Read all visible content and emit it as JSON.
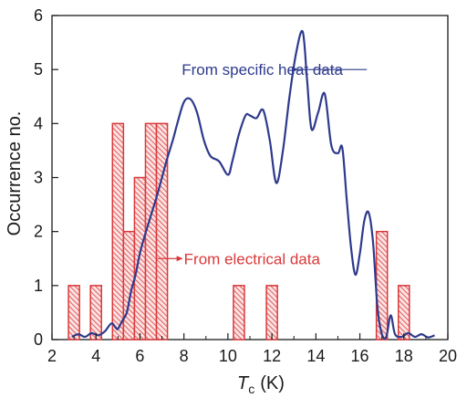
{
  "chart_data": {
    "type": "bar",
    "xlabel": {
      "symbol": "T",
      "subscript": "c",
      "unit": "(K)"
    },
    "ylabel": "Occurrence no.",
    "xlim": [
      2,
      20
    ],
    "ylim": [
      0,
      6
    ],
    "xticks": [
      2,
      4,
      6,
      8,
      10,
      12,
      14,
      16,
      18,
      20
    ],
    "yticks": [
      0,
      1,
      2,
      3,
      4,
      5,
      6
    ],
    "grid": false,
    "bars": {
      "name": "From electrical data",
      "bin_width": 0.5,
      "color": "#d9383a",
      "x": [
        3.0,
        4.0,
        5.0,
        5.5,
        6.0,
        6.5,
        7.0,
        10.5,
        12.0,
        17.0,
        18.0
      ],
      "values": [
        1,
        1,
        4,
        2,
        3,
        4,
        4,
        1,
        1,
        2,
        1
      ]
    },
    "line": {
      "name": "From specific heat data",
      "color": "#2e3a8c",
      "x": [
        2.9,
        3.2,
        3.5,
        3.8,
        4.1,
        4.4,
        4.7,
        4.9,
        5.0,
        5.2,
        5.4,
        5.6,
        5.8,
        6.0,
        6.2,
        6.5,
        6.8,
        7.0,
        7.2,
        7.5,
        7.7,
        8.0,
        8.3,
        8.6,
        8.9,
        9.2,
        9.6,
        10.0,
        10.2,
        10.5,
        10.8,
        11.0,
        11.3,
        11.6,
        11.9,
        12.2,
        12.5,
        12.8,
        13.1,
        13.4,
        13.6,
        13.8,
        14.1,
        14.4,
        14.7,
        15.0,
        15.2,
        15.4,
        15.6,
        15.8,
        16.0,
        16.2,
        16.4,
        16.6,
        16.8,
        17.0,
        17.2,
        17.4,
        17.6,
        17.9,
        18.2,
        18.5,
        18.8,
        19.1,
        19.4
      ],
      "values": [
        0.05,
        0.1,
        0.05,
        0.12,
        0.08,
        0.15,
        0.3,
        0.22,
        0.2,
        0.35,
        0.5,
        0.9,
        1.2,
        1.6,
        1.9,
        2.3,
        2.7,
        3.0,
        3.3,
        3.7,
        4.0,
        4.4,
        4.45,
        4.2,
        3.7,
        3.4,
        3.3,
        3.05,
        3.3,
        3.8,
        4.15,
        4.15,
        4.1,
        4.25,
        3.7,
        2.9,
        3.5,
        4.5,
        5.3,
        5.7,
        4.8,
        3.9,
        4.2,
        4.55,
        3.6,
        3.45,
        3.55,
        2.6,
        1.7,
        1.2,
        1.6,
        2.2,
        2.35,
        1.8,
        0.6,
        0.1,
        0.05,
        0.45,
        0.1,
        0.05,
        0.12,
        0.05,
        0.1,
        0.04,
        0.08
      ]
    },
    "annotations": [
      {
        "text": "From specific heat data",
        "color": "#2e3a8c",
        "x": 7.9,
        "y": 5.0,
        "arrow_to": {
          "x": 13.2,
          "y": 5.0
        }
      },
      {
        "text": "From electrical data",
        "color": "#d9383a",
        "x": 8.0,
        "y": 1.5,
        "arrow_from": {
          "x": 6.8,
          "y": 1.5
        }
      }
    ]
  }
}
